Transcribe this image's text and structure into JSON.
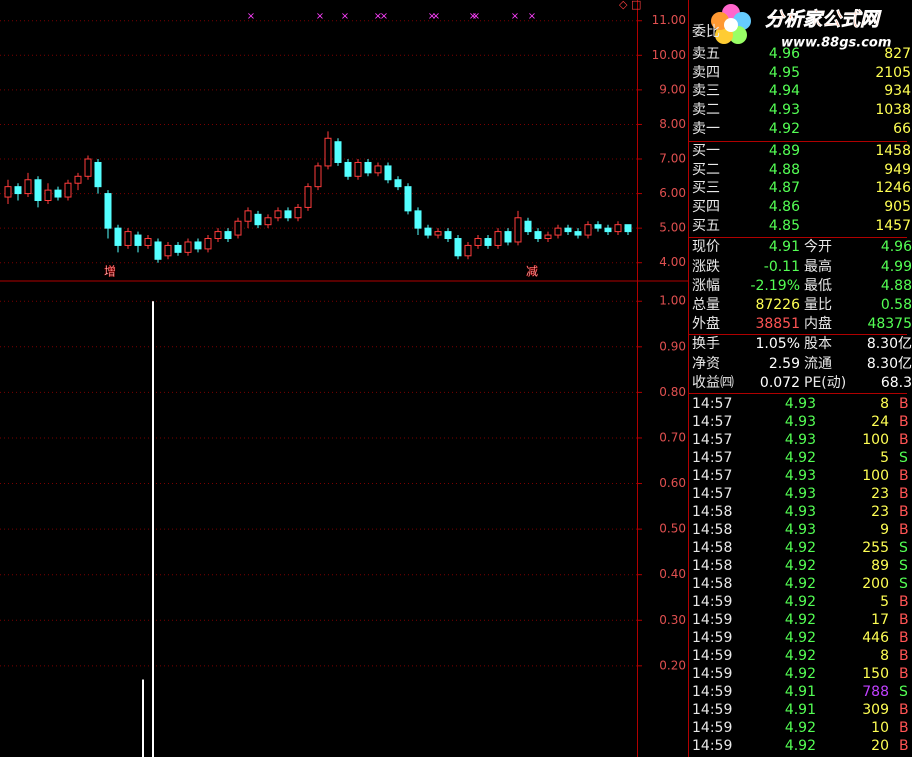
{
  "kline": {
    "ylim": [
      3.5,
      11.6
    ],
    "yticks": [
      {
        "value": 4,
        "label": "4.00"
      },
      {
        "value": 5,
        "label": "5.00"
      },
      {
        "value": 6,
        "label": "6.00"
      },
      {
        "value": 7,
        "label": "7.00"
      },
      {
        "value": 8,
        "label": "8.00"
      },
      {
        "value": 9,
        "label": "9.00"
      },
      {
        "value": 10,
        "label": "10.00"
      },
      {
        "value": 11,
        "label": "11.00"
      }
    ],
    "up_color": "#ff3c3c",
    "down_color": "#54ffff",
    "open": [
      5.9,
      6.2,
      6.0,
      6.4,
      5.8,
      6.1,
      5.9,
      6.3,
      6.5,
      6.9,
      6.0,
      5.0,
      4.5,
      4.8,
      4.5,
      4.6,
      4.2,
      4.5,
      4.3,
      4.6,
      4.4,
      4.7,
      4.9,
      4.8,
      5.2,
      5.4,
      5.1,
      5.3,
      5.5,
      5.3,
      5.6,
      6.2,
      6.8,
      7.5,
      6.9,
      6.5,
      6.9,
      6.6,
      6.8,
      6.4,
      6.2,
      5.5,
      5.0,
      4.8,
      4.9,
      4.7,
      4.2,
      4.5,
      4.7,
      4.5,
      4.9,
      4.6,
      5.2,
      4.9,
      4.7,
      4.8,
      5.0,
      4.9,
      4.8,
      5.1,
      5.0,
      4.9,
      5.1
    ],
    "close": [
      6.2,
      6.0,
      6.4,
      5.8,
      6.1,
      5.9,
      6.3,
      6.5,
      7.0,
      6.2,
      5.0,
      4.5,
      4.9,
      4.5,
      4.7,
      4.1,
      4.5,
      4.3,
      4.6,
      4.4,
      4.7,
      4.9,
      4.7,
      5.2,
      5.5,
      5.1,
      5.3,
      5.5,
      5.3,
      5.6,
      6.2,
      6.8,
      7.6,
      6.9,
      6.5,
      6.9,
      6.6,
      6.8,
      6.4,
      6.2,
      5.5,
      5.0,
      4.8,
      4.9,
      4.7,
      4.2,
      4.5,
      4.7,
      4.5,
      4.9,
      4.6,
      5.3,
      4.9,
      4.7,
      4.8,
      5.0,
      4.9,
      4.8,
      5.1,
      5.0,
      4.9,
      5.1,
      4.9
    ],
    "high": [
      6.4,
      6.3,
      6.6,
      6.5,
      6.3,
      6.2,
      6.4,
      6.6,
      7.1,
      7.0,
      6.1,
      5.1,
      5.0,
      4.9,
      4.8,
      4.7,
      4.6,
      4.6,
      4.7,
      4.7,
      4.8,
      5.0,
      5.0,
      5.3,
      5.6,
      5.5,
      5.4,
      5.6,
      5.6,
      5.7,
      6.3,
      6.9,
      7.8,
      7.6,
      7.0,
      7.0,
      7.0,
      6.9,
      6.9,
      6.5,
      6.3,
      5.6,
      5.1,
      5.0,
      5.0,
      4.8,
      4.6,
      4.8,
      4.8,
      5.0,
      5.0,
      5.5,
      5.3,
      5.0,
      4.9,
      5.1,
      5.1,
      5.0,
      5.2,
      5.2,
      5.1,
      5.2,
      5.1
    ],
    "low": [
      5.7,
      5.8,
      5.9,
      5.6,
      5.7,
      5.8,
      5.8,
      6.1,
      6.4,
      6.0,
      4.7,
      4.3,
      4.4,
      4.3,
      4.4,
      4.0,
      4.1,
      4.2,
      4.2,
      4.3,
      4.3,
      4.6,
      4.6,
      4.7,
      5.0,
      5.0,
      5.0,
      5.2,
      5.2,
      5.2,
      5.5,
      6.1,
      6.7,
      6.8,
      6.4,
      6.4,
      6.5,
      6.5,
      6.3,
      6.1,
      5.4,
      4.8,
      4.7,
      4.7,
      4.6,
      4.1,
      4.1,
      4.4,
      4.4,
      4.4,
      4.5,
      4.5,
      4.8,
      4.6,
      4.6,
      4.7,
      4.8,
      4.7,
      4.7,
      4.9,
      4.8,
      4.8,
      4.8
    ],
    "signals": [
      "增",
      "减"
    ]
  },
  "indicator": {
    "ylim": [
      0,
      1.04
    ],
    "yticks": [
      {
        "value": 0.2,
        "label": "0.20"
      },
      {
        "value": 0.3,
        "label": "0.30"
      },
      {
        "value": 0.4,
        "label": "0.40"
      },
      {
        "value": 0.5,
        "label": "0.50"
      },
      {
        "value": 0.6,
        "label": "0.60"
      },
      {
        "value": 0.7,
        "label": "0.70"
      },
      {
        "value": 0.8,
        "label": "0.80"
      },
      {
        "value": 0.9,
        "label": "0.90"
      },
      {
        "value": 1,
        "label": "1.00"
      }
    ],
    "color": "#ffffff",
    "values": [
      0,
      0,
      0,
      0,
      0,
      0,
      0,
      0,
      0,
      0,
      0,
      0,
      0,
      0,
      0.17,
      1,
      0,
      0,
      0,
      0,
      0,
      0,
      0,
      0,
      0,
      0,
      0,
      0,
      0,
      0,
      0,
      0,
      0,
      0,
      0,
      0,
      0,
      0,
      0,
      0,
      0,
      0,
      0,
      0,
      0,
      0,
      0,
      0,
      0,
      0,
      0,
      0,
      0,
      0,
      0,
      0,
      0,
      0,
      0,
      0,
      0,
      0,
      0
    ]
  },
  "logo": {
    "title": "分析家公式网",
    "url": "www.88gs.com"
  },
  "order_book": [
    {
      "label": "委比"
    },
    {
      "label": "卖五",
      "price": "4.96",
      "volume": "827"
    },
    {
      "label": "卖四",
      "price": "4.95",
      "volume": "2105"
    },
    {
      "label": "卖三",
      "price": "4.94",
      "volume": "934"
    },
    {
      "label": "卖二",
      "price": "4.93",
      "volume": "1038"
    },
    {
      "label": "卖一",
      "price": "4.92",
      "volume": "66"
    },
    {
      "label": "买一",
      "price": "4.89",
      "volume": "1458"
    },
    {
      "label": "买二",
      "price": "4.88",
      "volume": "949"
    },
    {
      "label": "买三",
      "price": "4.87",
      "volume": "1246"
    },
    {
      "label": "买四",
      "price": "4.86",
      "volume": "905"
    },
    {
      "label": "买五",
      "price": "4.85",
      "volume": "1457"
    }
  ],
  "quote": [
    {
      "label": "现价",
      "value": "4.91",
      "color": "#54ff54",
      "label2": "今开",
      "value2": "4.96",
      "color2": "#54ff54"
    },
    {
      "label": "涨跌",
      "value": "-0.11",
      "color": "#54ff54",
      "label2": "最高",
      "value2": "4.99",
      "color2": "#54ff54"
    },
    {
      "label": "涨幅",
      "value": "-2.19%",
      "color": "#54ff54",
      "label2": "最低",
      "value2": "4.88",
      "color2": "#54ff54"
    },
    {
      "label": "总量",
      "value": "87226",
      "color": "#ffff54",
      "label2": "量比",
      "value2": "0.58",
      "color2": "#54ff54"
    },
    {
      "label": "外盘",
      "value": "38851",
      "color": "#ff5454",
      "label2": "内盘",
      "value2": "48375",
      "color2": "#54ff54"
    },
    {
      "label": "换手",
      "value": "1.05%",
      "color": "#ffffff",
      "label2": "股本",
      "value2": "8.30亿",
      "color2": "#ffffff"
    },
    {
      "label": "净资",
      "value": "2.59",
      "color": "#ffffff",
      "label2": "流通",
      "value2": "8.30亿",
      "color2": "#ffffff"
    },
    {
      "label": "收益㈣",
      "value": "0.072",
      "color": "#ffffff",
      "label2": "PE(动)",
      "value2": "68.3",
      "color2": "#ffffff"
    }
  ],
  "trades": [
    {
      "time": "14:57",
      "price": "4.93",
      "volume": "8",
      "side": "B"
    },
    {
      "time": "14:57",
      "price": "4.93",
      "volume": "24",
      "side": "B"
    },
    {
      "time": "14:57",
      "price": "4.93",
      "volume": "100",
      "side": "B"
    },
    {
      "time": "14:57",
      "price": "4.92",
      "volume": "5",
      "side": "S"
    },
    {
      "time": "14:57",
      "price": "4.93",
      "volume": "100",
      "side": "B"
    },
    {
      "time": "14:57",
      "price": "4.93",
      "volume": "23",
      "side": "B"
    },
    {
      "time": "14:58",
      "price": "4.93",
      "volume": "23",
      "side": "B"
    },
    {
      "time": "14:58",
      "price": "4.93",
      "volume": "9",
      "side": "B"
    },
    {
      "time": "14:58",
      "price": "4.92",
      "volume": "255",
      "side": "S"
    },
    {
      "time": "14:58",
      "price": "4.92",
      "volume": "89",
      "side": "S"
    },
    {
      "time": "14:58",
      "price": "4.92",
      "volume": "200",
      "side": "S"
    },
    {
      "time": "14:59",
      "price": "4.92",
      "volume": "5",
      "side": "B"
    },
    {
      "time": "14:59",
      "price": "4.92",
      "volume": "17",
      "side": "B"
    },
    {
      "time": "14:59",
      "price": "4.92",
      "volume": "446",
      "side": "B"
    },
    {
      "time": "14:59",
      "price": "4.92",
      "volume": "8",
      "side": "B"
    },
    {
      "time": "14:59",
      "price": "4.92",
      "volume": "150",
      "side": "B"
    },
    {
      "time": "14:59",
      "price": "4.91",
      "volume": "788",
      "side": "S",
      "color": "#c040ff"
    },
    {
      "time": "14:59",
      "price": "4.91",
      "volume": "309",
      "side": "B"
    },
    {
      "time": "14:59",
      "price": "4.92",
      "volume": "10",
      "side": "B"
    },
    {
      "time": "14:59",
      "price": "4.92",
      "volume": "20",
      "side": "B"
    }
  ]
}
